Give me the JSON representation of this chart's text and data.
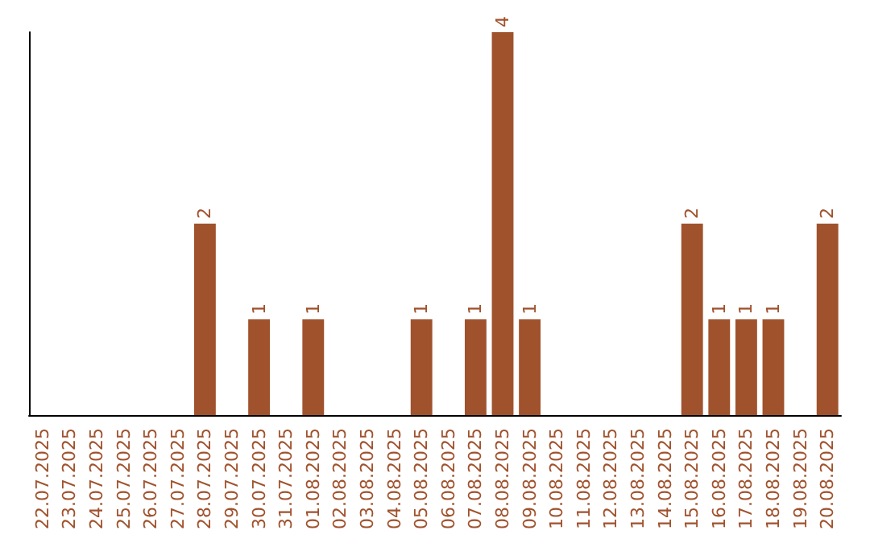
{
  "chart_data": {
    "type": "bar",
    "categories": [
      "22.07.2025",
      "23.07.2025",
      "24.07.2025",
      "25.07.2025",
      "26.07.2025",
      "27.07.2025",
      "28.07.2025",
      "29.07.2025",
      "30.07.2025",
      "31.07.2025",
      "01.08.2025",
      "02.08.2025",
      "03.08.2025",
      "04.08.2025",
      "05.08.2025",
      "06.08.2025",
      "07.08.2025",
      "08.08.2025",
      "09.08.2025",
      "10.08.2025",
      "11.08.2025",
      "12.08.2025",
      "13.08.2025",
      "14.08.2025",
      "15.08.2025",
      "16.08.2025",
      "17.08.2025",
      "18.08.2025",
      "19.08.2025",
      "20.08.2025"
    ],
    "values": [
      0,
      0,
      0,
      0,
      0,
      0,
      2,
      0,
      1,
      0,
      1,
      0,
      0,
      0,
      1,
      0,
      1,
      4,
      1,
      0,
      0,
      0,
      0,
      0,
      2,
      1,
      1,
      1,
      0,
      2
    ],
    "value_labels": [
      null,
      null,
      null,
      null,
      null,
      null,
      "2",
      null,
      "1",
      null,
      "1",
      null,
      null,
      null,
      "1",
      null,
      "1",
      "4",
      "1",
      null,
      null,
      null,
      null,
      null,
      "2",
      "1",
      "1",
      "1",
      null,
      "2"
    ],
    "color": "#a0522d",
    "tick_labels": "x"
  }
}
